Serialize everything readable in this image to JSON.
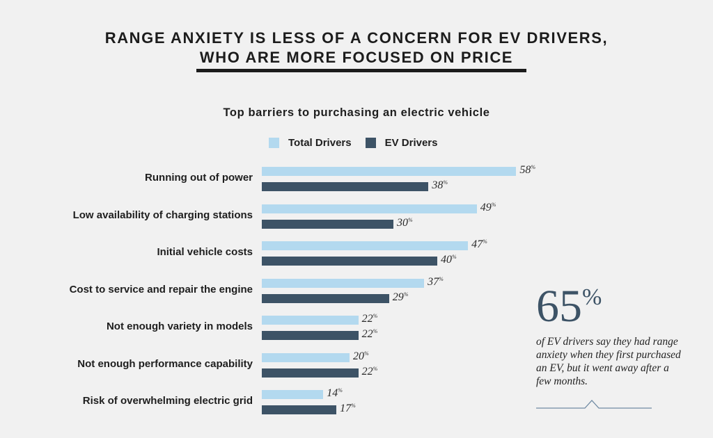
{
  "title_line1": "RANGE ANXIETY IS LESS OF A CONCERN FOR EV DRIVERS,",
  "title_line2": "WHO ARE MORE FOCUSED ON PRICE",
  "chart_data": {
    "type": "bar",
    "orientation": "horizontal",
    "title": "Top barriers to purchasing an electric vehicle",
    "categories": [
      "Running out of power",
      "Low availability of charging stations",
      "Initial vehicle costs",
      "Cost to service and repair the engine",
      "Not enough variety in models",
      "Not enough performance capability",
      "Risk of overwhelming electric grid"
    ],
    "series": [
      {
        "name": "Total Drivers",
        "color": "#b3d9ef",
        "values": [
          58,
          49,
          47,
          37,
          22,
          20,
          14
        ]
      },
      {
        "name": "EV Drivers",
        "color": "#3d5366",
        "values": [
          38,
          30,
          40,
          29,
          22,
          22,
          17
        ]
      }
    ],
    "unit": "%",
    "legend": "top",
    "grid": false
  },
  "callout": {
    "value": "65",
    "unit": "%",
    "text": "of EV drivers say they had range anxiety when they first purchased an EV, but it went away after a few months."
  }
}
